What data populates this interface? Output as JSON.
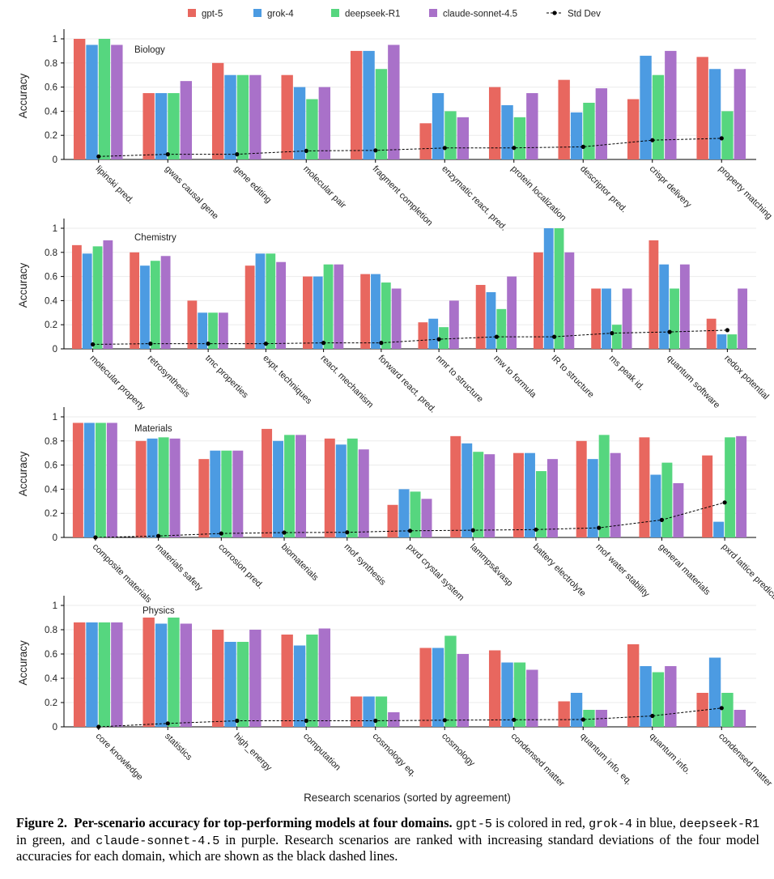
{
  "chart_data": {
    "type": "bar",
    "legend": {
      "position": "top-center",
      "entries": [
        "gpt-5",
        "grok-4",
        "deepseek-R1",
        "claude-sonnet-4.5",
        "Std Dev"
      ]
    },
    "colors": {
      "gpt-5": "#e8675f",
      "grok-4": "#4c9be2",
      "deepseek-R1": "#56d67f",
      "claude-sonnet-4.5": "#a971c9",
      "std_dev": "#000000",
      "grid": "#ebebeb",
      "axis": "#000000"
    },
    "ylabel": "Accuracy",
    "xlabel": "Research scenarios (sorted by agreement)",
    "ylim": [
      0,
      1.1
    ],
    "yticks": [
      "0",
      "0.2",
      "0.4",
      "0.6",
      "0.8",
      "1"
    ],
    "panels": [
      {
        "title": "Biology",
        "categories": [
          "lipinski pred.",
          "gwas causal gene",
          "gene editing",
          "molecular pair",
          "fragment completion",
          "enzymatic react. pred.",
          "protein localization",
          "descriptor pred.",
          "crispr delivery",
          "property matching"
        ],
        "series": [
          {
            "name": "gpt-5",
            "values": [
              1.0,
              0.55,
              0.8,
              0.7,
              0.9,
              0.3,
              0.6,
              0.66,
              0.5,
              0.85
            ]
          },
          {
            "name": "grok-4",
            "values": [
              0.95,
              0.55,
              0.7,
              0.6,
              0.9,
              0.55,
              0.45,
              0.39,
              0.86,
              0.75
            ]
          },
          {
            "name": "deepseek-R1",
            "values": [
              1.0,
              0.55,
              0.7,
              0.5,
              0.75,
              0.4,
              0.35,
              0.47,
              0.7,
              0.4
            ]
          },
          {
            "name": "claude-sonnet-4.5",
            "values": [
              0.95,
              0.65,
              0.7,
              0.6,
              0.95,
              0.35,
              0.55,
              0.59,
              0.9,
              0.75
            ]
          }
        ],
        "std_dev": [
          0.025,
          0.043,
          0.043,
          0.071,
          0.075,
          0.095,
          0.096,
          0.105,
          0.16,
          0.175
        ]
      },
      {
        "title": "Chemistry",
        "categories": [
          "molecular property",
          "retrosynthesis",
          "tmc properties",
          "expt. techniques",
          "react. mechanism",
          "forward react. pred.",
          "nmr to structure",
          "mw to formula",
          "IR to structure",
          "ms peak id.",
          "quantum software",
          "redox potential"
        ],
        "series": [
          {
            "name": "gpt-5",
            "values": [
              0.86,
              0.8,
              0.4,
              0.69,
              0.6,
              0.62,
              0.22,
              0.53,
              0.8,
              0.5,
              0.9,
              0.25
            ]
          },
          {
            "name": "grok-4",
            "values": [
              0.79,
              0.69,
              0.3,
              0.79,
              0.6,
              0.62,
              0.25,
              0.47,
              1.0,
              0.5,
              0.7,
              0.12
            ]
          },
          {
            "name": "deepseek-R1",
            "values": [
              0.85,
              0.73,
              0.3,
              0.79,
              0.7,
              0.55,
              0.18,
              0.33,
              1.0,
              0.2,
              0.5,
              0.12
            ]
          },
          {
            "name": "claude-sonnet-4.5",
            "values": [
              0.9,
              0.77,
              0.3,
              0.72,
              0.7,
              0.5,
              0.4,
              0.6,
              0.8,
              0.5,
              0.7,
              0.5
            ]
          }
        ],
        "std_dev": [
          0.037,
          0.043,
          0.043,
          0.043,
          0.05,
          0.05,
          0.08,
          0.1,
          0.1,
          0.13,
          0.14,
          0.155
        ]
      },
      {
        "title": "Materials",
        "categories": [
          "composite materials",
          "materials safety",
          "corrosion pred.",
          "biomaterials",
          "mof synthesis",
          "pxrd crystal system",
          "lammps&vasp",
          "battery electrolyte",
          "mof water stability",
          "general materials",
          "pxrd lattice prediction"
        ],
        "series": [
          {
            "name": "gpt-5",
            "values": [
              0.95,
              0.8,
              0.65,
              0.9,
              0.82,
              0.27,
              0.84,
              0.7,
              0.8,
              0.83,
              0.68
            ]
          },
          {
            "name": "grok-4",
            "values": [
              0.95,
              0.82,
              0.72,
              0.8,
              0.77,
              0.4,
              0.78,
              0.7,
              0.65,
              0.52,
              0.13
            ]
          },
          {
            "name": "deepseek-R1",
            "values": [
              0.95,
              0.83,
              0.72,
              0.85,
              0.82,
              0.38,
              0.71,
              0.55,
              0.85,
              0.62,
              0.83
            ]
          },
          {
            "name": "claude-sonnet-4.5",
            "values": [
              0.95,
              0.82,
              0.72,
              0.85,
              0.73,
              0.32,
              0.69,
              0.65,
              0.7,
              0.45,
              0.84
            ]
          }
        ],
        "std_dev": [
          0.0,
          0.012,
          0.033,
          0.04,
          0.042,
          0.055,
          0.06,
          0.065,
          0.08,
          0.145,
          0.29
        ]
      },
      {
        "title": "Physics",
        "categories": [
          "core knowledge",
          "statistics",
          "high_energy",
          "computation",
          "cosmology eq.",
          "cosmology",
          "condensed matter",
          "quantum info. eq.",
          "quantum info.",
          "condensed matter"
        ],
        "series": [
          {
            "name": "gpt-5",
            "values": [
              0.86,
              0.9,
              0.8,
              0.76,
              0.25,
              0.65,
              0.63,
              0.21,
              0.68,
              0.28
            ]
          },
          {
            "name": "grok-4",
            "values": [
              0.86,
              0.85,
              0.7,
              0.67,
              0.25,
              0.65,
              0.53,
              0.28,
              0.5,
              0.57
            ]
          },
          {
            "name": "deepseek-R1",
            "values": [
              0.86,
              0.9,
              0.7,
              0.76,
              0.25,
              0.75,
              0.53,
              0.14,
              0.45,
              0.28
            ]
          },
          {
            "name": "claude-sonnet-4.5",
            "values": [
              0.86,
              0.85,
              0.8,
              0.81,
              0.12,
              0.6,
              0.47,
              0.14,
              0.5,
              0.14
            ]
          }
        ],
        "std_dev": [
          0.0,
          0.028,
          0.05,
          0.05,
          0.05,
          0.055,
          0.058,
          0.06,
          0.09,
          0.155
        ]
      }
    ]
  },
  "caption": {
    "label": "Figure 2.",
    "title": "Per-scenario accuracy for top-performing models at four domains.",
    "model_1": "gpt-5",
    "text_1": " is colored in red, ",
    "model_2": "grok-4",
    "text_2": " in blue, ",
    "model_3": "deepseek-R1",
    "text_3": " in green, and ",
    "model_4": "claude-sonnet-4.5",
    "text_4": " in purple. Research scenarios are ranked with increasing standard deviations of the four model accuracies for each domain, which are shown as the black dashed lines."
  }
}
